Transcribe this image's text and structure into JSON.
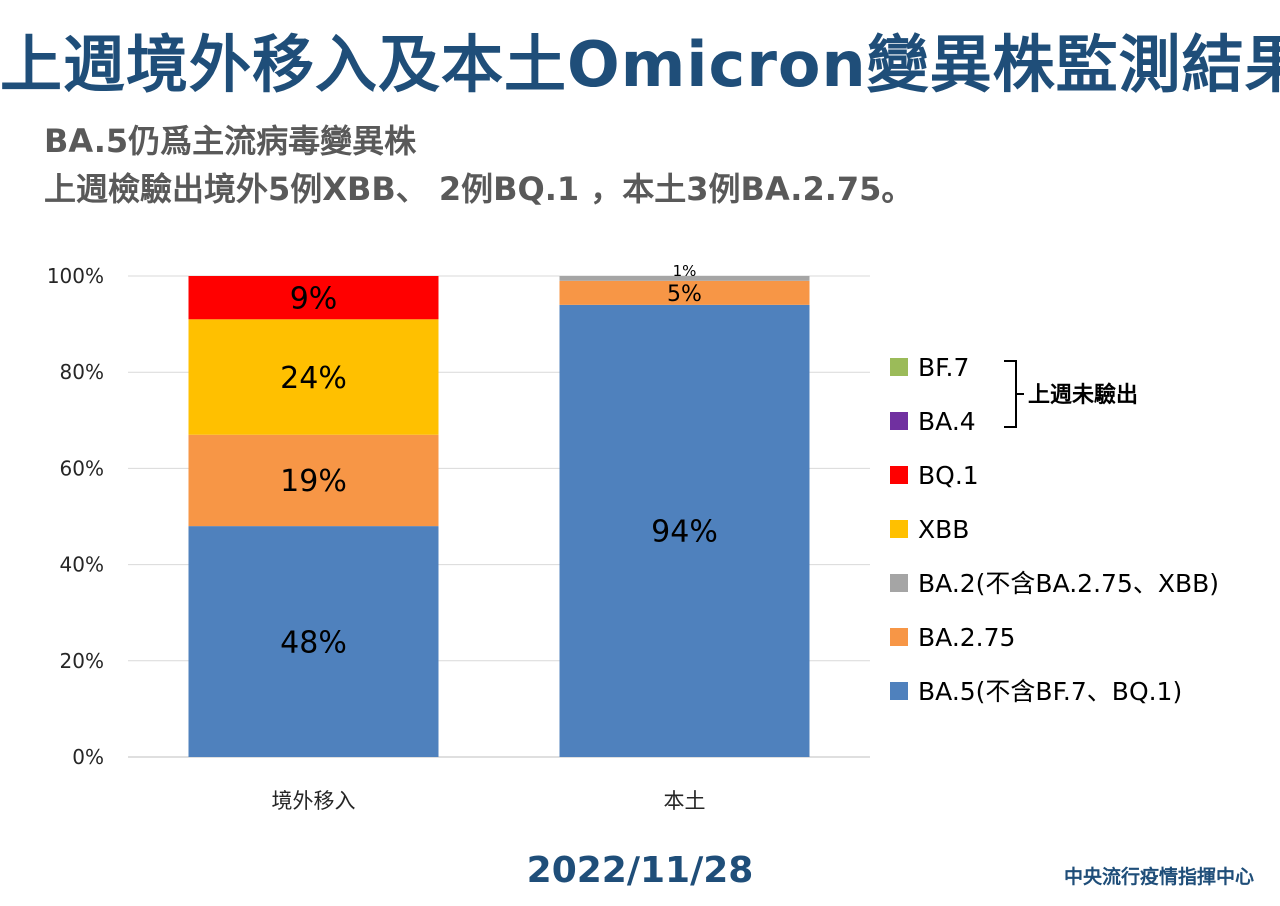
{
  "title": "上週境外移入及本土Omicron變異株監測結果",
  "subtitle_lines": [
    "BA.5仍爲主流病毒變異株",
    "上週檢驗出境外5例XBB、 2例BQ.1 ，本土3例BA.2.75。"
  ],
  "date": "2022/11/28",
  "organization": "中央流行疫情指揮中心",
  "chart_data": {
    "type": "bar",
    "stacked": true,
    "percent_stacked": true,
    "categories": [
      "境外移入",
      "本土"
    ],
    "ylim": [
      0,
      100
    ],
    "yticks": [
      "0%",
      "20%",
      "40%",
      "60%",
      "80%",
      "100%"
    ],
    "grid": true,
    "legend_position": "right",
    "series": [
      {
        "name": "BA.5(不含BF.7、BQ.1)",
        "color": "#4f81bd",
        "values": [
          48,
          94
        ],
        "labels": [
          "48%",
          "94%"
        ]
      },
      {
        "name": "BA.2.75",
        "color": "#f79646",
        "values": [
          19,
          5
        ],
        "labels": [
          "19%",
          "5%"
        ]
      },
      {
        "name": "BA.2(不含BA.2.75、XBB)",
        "color": "#a5a5a5",
        "values": [
          0,
          1
        ],
        "labels": [
          "",
          "1%"
        ]
      },
      {
        "name": "XBB",
        "color": "#ffc000",
        "values": [
          24,
          0
        ],
        "labels": [
          "24%",
          ""
        ]
      },
      {
        "name": "BQ.1",
        "color": "#ff0000",
        "values": [
          9,
          0
        ],
        "labels": [
          "9%",
          ""
        ]
      },
      {
        "name": "BA.4",
        "color": "#7030a0",
        "values": [
          0,
          0
        ],
        "labels": [
          "",
          ""
        ]
      },
      {
        "name": "BF.7",
        "color": "#9bbb59",
        "values": [
          0,
          0
        ],
        "labels": [
          "",
          ""
        ]
      }
    ],
    "legend_order": [
      "BF.7",
      "BA.4",
      "BQ.1",
      "XBB",
      "BA.2(不含BA.2.75、XBB)",
      "BA.2.75",
      "BA.5(不含BF.7、BQ.1)"
    ],
    "bracket_label": "上週未驗出",
    "bracket_series": [
      "BF.7",
      "BA.4"
    ]
  }
}
